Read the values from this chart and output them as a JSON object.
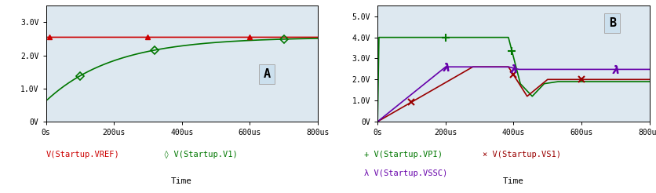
{
  "plot_A": {
    "xlim": [
      0,
      0.0008
    ],
    "ylim": [
      0,
      3.5
    ],
    "yticks": [
      0,
      1.0,
      2.0,
      3.0
    ],
    "ytick_labels": [
      "0V",
      "1.0V",
      "2.0V",
      "3.0V"
    ],
    "xticks": [
      0,
      0.0002,
      0.0004,
      0.0006,
      0.0008
    ],
    "xtick_labels": [
      "0s",
      "200us",
      "400us",
      "600us",
      "800us"
    ],
    "label": "A",
    "vref_color": "#cc0000",
    "v1_color": "#007700",
    "xlabel": "Time"
  },
  "plot_B": {
    "xlim": [
      0,
      0.0008
    ],
    "ylim": [
      0,
      5.5
    ],
    "yticks": [
      0,
      1.0,
      2.0,
      3.0,
      4.0,
      5.0
    ],
    "ytick_labels": [
      "0V",
      "1.0V",
      "2.0V",
      "3.0V",
      "4.0V",
      "5.0V"
    ],
    "xticks": [
      0,
      0.0002,
      0.0004,
      0.0006,
      0.0008
    ],
    "xtick_labels": [
      "0s",
      "200us",
      "400us",
      "600us",
      "800us"
    ],
    "label": "B",
    "vpi_color": "#007700",
    "vs1_color": "#990000",
    "vssc_color": "#6600aa",
    "xlabel": "Time"
  },
  "bg_color": "#dde8f0",
  "label_box_color": "#cce0ee",
  "figsize": [
    8.36,
    2.46
  ],
  "dpi": 100
}
